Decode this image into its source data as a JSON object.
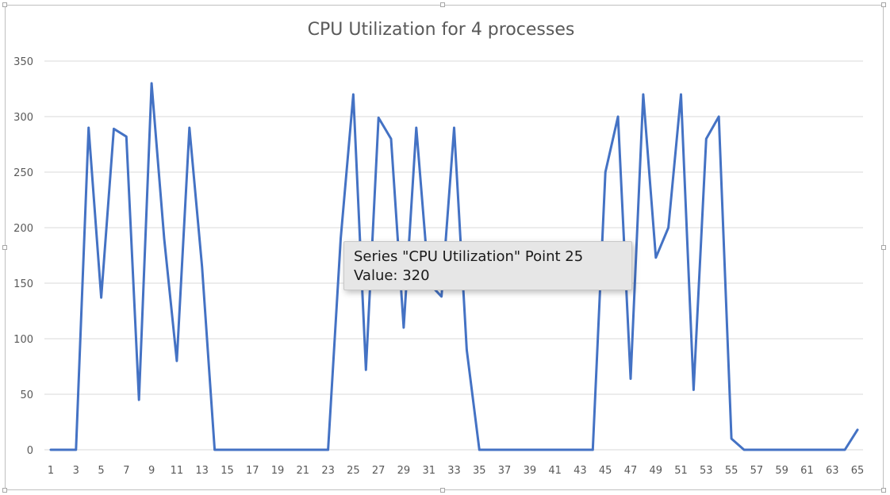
{
  "chart_data": {
    "type": "line",
    "title": "CPU Utilization for 4 processes",
    "xlabel": "",
    "ylabel": "",
    "ylim": [
      0,
      350
    ],
    "yticks": [
      0,
      50,
      100,
      150,
      200,
      250,
      300,
      350
    ],
    "xlim": [
      1,
      65
    ],
    "xtick_labels": [
      "1",
      "3",
      "5",
      "7",
      "9",
      "11",
      "13",
      "15",
      "17",
      "19",
      "21",
      "23",
      "25",
      "27",
      "29",
      "31",
      "33",
      "35",
      "37",
      "39",
      "41",
      "43",
      "45",
      "47",
      "49",
      "51",
      "53",
      "55",
      "57",
      "59",
      "61",
      "63",
      "65"
    ],
    "grid": true,
    "legend": "none",
    "color": "#4472c4",
    "series": [
      {
        "name": "CPU Utilization",
        "x": [
          1,
          2,
          3,
          4,
          5,
          6,
          7,
          8,
          9,
          10,
          11,
          12,
          13,
          14,
          15,
          16,
          17,
          18,
          19,
          20,
          21,
          22,
          23,
          24,
          25,
          26,
          27,
          28,
          29,
          30,
          31,
          32,
          33,
          34,
          35,
          36,
          37,
          38,
          39,
          40,
          41,
          42,
          43,
          44,
          45,
          46,
          47,
          48,
          49,
          50,
          51,
          52,
          53,
          54,
          55,
          56,
          57,
          58,
          59,
          60,
          61,
          62,
          63,
          64,
          65
        ],
        "values": [
          0,
          0,
          0,
          290,
          137,
          289,
          282,
          45,
          330,
          190,
          80,
          290,
          165,
          0,
          0,
          0,
          0,
          0,
          0,
          0,
          0,
          0,
          0,
          190,
          320,
          72,
          299,
          280,
          110,
          290,
          150,
          138,
          290,
          90,
          0,
          0,
          0,
          0,
          0,
          0,
          0,
          0,
          0,
          0,
          250,
          300,
          64,
          320,
          173,
          200,
          320,
          54,
          280,
          300,
          10,
          0,
          0,
          0,
          0,
          0,
          0,
          0,
          0,
          0,
          18
        ]
      }
    ]
  },
  "tooltip": {
    "line1": "Series \"CPU Utilization\" Point 25",
    "line2": "Value: 320"
  }
}
